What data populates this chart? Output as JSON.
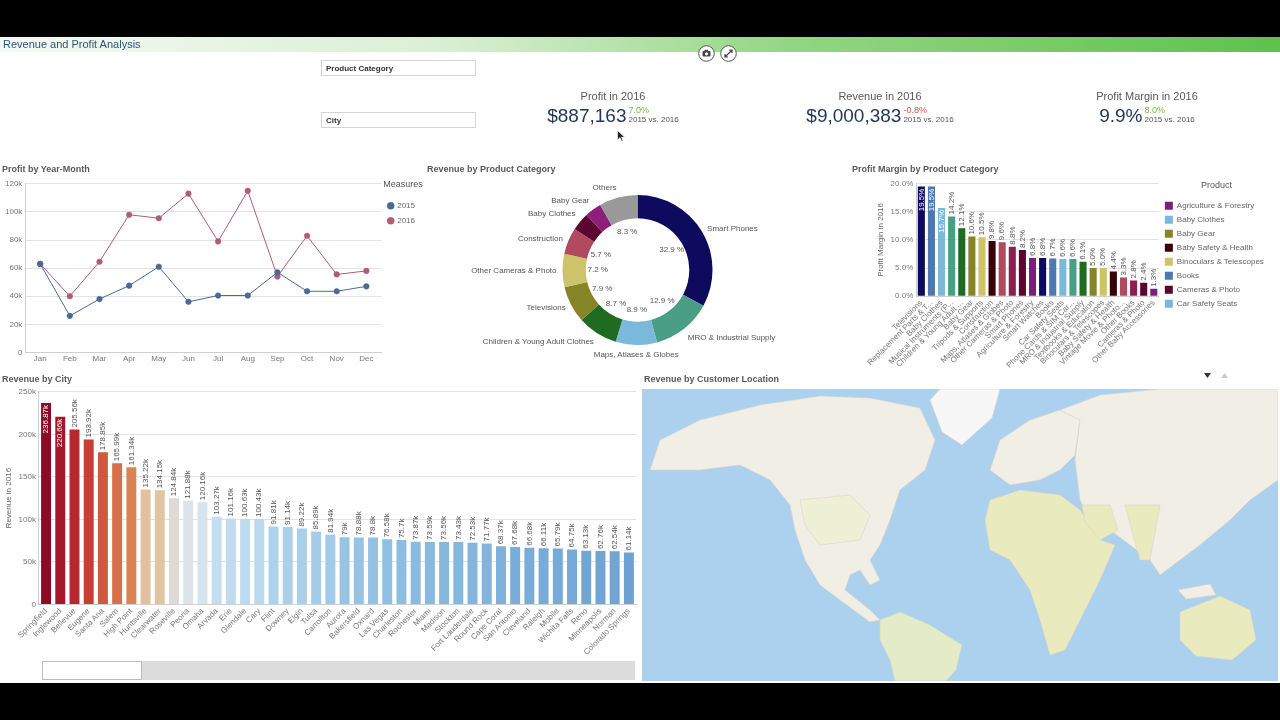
{
  "chart_data": [
    {
      "type": "other",
      "title": "Revenue and Profit Analysis",
      "annotations": [
        "Product Category",
        "City"
      ]
    },
    {
      "type": "other",
      "title": "Profit in 2016",
      "annotations": [
        "$887,163",
        "7.0%",
        "2015 vs. 2016"
      ]
    },
    {
      "type": "other",
      "title": "Revenue in 2016",
      "annotations": [
        "$9,000,383",
        "-0.8%",
        "2015 vs. 2016"
      ]
    },
    {
      "type": "other",
      "title": "Profit Margin in 2016",
      "annotations": [
        "9.9%",
        "8.0%",
        "2015 vs. 2016"
      ]
    },
    {
      "type": "line",
      "title": "Profit by Year-Month",
      "categories": [
        "Jan",
        "Feb",
        "Mar",
        "Apr",
        "May",
        "Jun",
        "Jul",
        "Aug",
        "Sep",
        "Oct",
        "Nov",
        "Dec"
      ],
      "series": [
        {
          "name": "2015",
          "color": "#4a6a94",
          "values": [
            63000,
            26000,
            38000,
            47500,
            61000,
            36000,
            40500,
            40500,
            57000,
            43500,
            43500,
            47000
          ]
        },
        {
          "name": "2016",
          "color": "#b05c75",
          "values": [
            63000,
            40000,
            64500,
            98000,
            95500,
            113000,
            79000,
            115000,
            54000,
            83000,
            55500,
            58000
          ]
        }
      ],
      "ylim": [
        0,
        120000
      ],
      "yticks": [
        0,
        {
          "value": 20000,
          "label": "20k"
        },
        {
          "value": 40000,
          "label": "40k"
        },
        {
          "value": 60000,
          "label": "60k"
        },
        {
          "value": 80000,
          "label": "80k"
        },
        {
          "value": 100000,
          "label": "100k"
        },
        {
          "value": 120000,
          "label": "120k"
        }
      ],
      "grid": "y",
      "legend": "top right",
      "legend_title": "Measures",
      "marker": "circle"
    },
    {
      "type": "donut",
      "title": "Revenue by Product Category",
      "categories": [
        "Smart Phones",
        "MRO & Industrial Supply",
        "Maps, Atlases & Globes",
        "Children & Young Adult Clothes",
        "Televisions",
        "Other Cameras & Photo",
        "Construction",
        "Baby Clothes",
        "Baby Gear",
        "Others"
      ],
      "values": [
        32.9,
        12.9,
        8.9,
        8.7,
        7.9,
        7.2,
        5.7,
        3.9,
        3.6,
        8.3
      ],
      "value_labels": [
        "32.9 %",
        "12.9 %",
        "8.9 %",
        "8.7 %",
        "7.9 %",
        "7.2 %",
        "5.7 %",
        null,
        null,
        "8.3 %"
      ],
      "colors": [
        "#0e0a5e",
        "#4a9e85",
        "#7ab8dc",
        "#1f6b22",
        "#858528",
        "#cec36a",
        "#b04a5e",
        "#5c0530",
        "#8b1f7a",
        "#999999"
      ]
    },
    {
      "type": "bar",
      "title": "Profit Margin by Product Category",
      "ylabel": "Profit Margin in 2016",
      "categories": [
        "Televisions",
        "Replacement Parts & T...",
        "Baby Clothes",
        "Musical Instruments (P...",
        "Children & Young Adult ...",
        "Baby Gear",
        "Tripods & Supports",
        "Construction",
        "Maps, Atlases & Globes",
        "Other Cameras & Photo",
        "Smart Phones",
        "Agriculture & Forestry",
        "Smart Watches",
        "Books",
        "Car Safety Seats",
        "Phone Cards & SIM Car...",
        "MRO & Industrial Supply",
        "Textbooks & Education",
        "Binoculars & Telescopes",
        "Baby Safety & Health",
        "Vintage Movie & Photo...",
        "Other Books",
        "Cameras & Photo",
        "Other Baby Accessories"
      ],
      "series": [
        {
          "name": "Agriculture & Forestry",
          "color": "#7b1f7f",
          "values": [
            null,
            null,
            null,
            null,
            null,
            null,
            null,
            null,
            null,
            null,
            null,
            6.8,
            null,
            null,
            null,
            null,
            null,
            null,
            null,
            null,
            null,
            null,
            null,
            null
          ],
          "value_labels": [
            null,
            null,
            null,
            null,
            null,
            null,
            null,
            null,
            null,
            null,
            null,
            "6.8%",
            null,
            null,
            null,
            null,
            null,
            null,
            null,
            null,
            null,
            null,
            null,
            null
          ]
        },
        {
          "name": "Baby Clothes",
          "color": "#7ab8dc",
          "values": [
            null,
            null,
            15.7,
            null,
            null,
            null,
            null,
            null,
            null,
            null,
            null,
            null,
            null,
            null,
            null,
            null,
            null,
            null,
            null,
            null,
            null,
            null,
            null,
            null
          ],
          "value_labels": [
            null,
            null,
            "15.7%",
            null,
            null,
            null,
            null,
            null,
            null,
            null,
            null,
            null,
            null,
            null,
            null,
            null,
            null,
            null,
            null,
            null,
            null,
            null,
            null,
            null
          ]
        },
        {
          "name": "Baby Gear",
          "color": "#858528",
          "values": [
            null,
            null,
            null,
            null,
            null,
            10.6,
            null,
            null,
            null,
            null,
            null,
            null,
            null,
            null,
            null,
            null,
            null,
            null,
            null,
            null,
            null,
            null,
            null,
            null
          ],
          "value_labels": [
            null,
            null,
            null,
            null,
            null,
            "10.6%",
            null,
            null,
            null,
            null,
            null,
            null,
            null,
            null,
            null,
            null,
            null,
            null,
            null,
            null,
            null,
            null,
            null,
            null
          ]
        },
        {
          "name": "Baby Safety & Health",
          "color": "#3a0008",
          "values": [
            null,
            null,
            null,
            null,
            null,
            null,
            null,
            null,
            null,
            null,
            null,
            null,
            null,
            null,
            null,
            null,
            null,
            null,
            null,
            4.4,
            null,
            null,
            null,
            null
          ],
          "value_labels": [
            null,
            null,
            null,
            null,
            null,
            null,
            null,
            null,
            null,
            null,
            null,
            null,
            null,
            null,
            null,
            null,
            null,
            null,
            null,
            "4.4%",
            null,
            null,
            null,
            null
          ]
        },
        {
          "name": "Binoculars & Telescopes",
          "color": "#cec36a",
          "values": [
            null,
            null,
            null,
            null,
            null,
            null,
            null,
            null,
            null,
            null,
            null,
            null,
            null,
            null,
            null,
            null,
            null,
            null,
            5.0,
            null,
            null,
            null,
            null,
            null
          ],
          "value_labels": [
            null,
            null,
            null,
            null,
            null,
            null,
            null,
            null,
            null,
            null,
            null,
            null,
            null,
            null,
            null,
            null,
            null,
            null,
            "5.0%",
            null,
            null,
            null,
            null,
            null
          ]
        },
        {
          "name": "Books",
          "color": "#4e79b0",
          "values": [
            null,
            null,
            null,
            null,
            null,
            null,
            null,
            null,
            null,
            null,
            null,
            null,
            null,
            6.7,
            null,
            null,
            null,
            null,
            null,
            null,
            null,
            null,
            null,
            null
          ],
          "value_labels": [
            null,
            null,
            null,
            null,
            null,
            null,
            null,
            null,
            null,
            null,
            null,
            null,
            null,
            "6.7%",
            null,
            null,
            null,
            null,
            null,
            null,
            null,
            null,
            null,
            null
          ]
        },
        {
          "name": "Cameras & Photo",
          "color": "#5c0530",
          "values": [
            null,
            null,
            null,
            null,
            null,
            null,
            null,
            null,
            null,
            null,
            null,
            null,
            null,
            null,
            null,
            null,
            null,
            null,
            null,
            null,
            null,
            null,
            2.4,
            null
          ],
          "value_labels": [
            null,
            null,
            null,
            null,
            null,
            null,
            null,
            null,
            null,
            null,
            null,
            null,
            null,
            null,
            null,
            null,
            null,
            null,
            null,
            null,
            null,
            null,
            "2.4%",
            null
          ]
        },
        {
          "name": "Car Safety Seats",
          "color": "#7ab8dc",
          "values": [
            null,
            null,
            null,
            null,
            null,
            null,
            null,
            null,
            null,
            null,
            null,
            null,
            null,
            null,
            6.6,
            null,
            null,
            null,
            null,
            null,
            null,
            null,
            null,
            null
          ],
          "value_labels": [
            null,
            null,
            null,
            null,
            null,
            null,
            null,
            null,
            null,
            null,
            null,
            null,
            null,
            null,
            "6.6%",
            null,
            null,
            null,
            null,
            null,
            null,
            null,
            null,
            null
          ]
        },
        {
          "color": "#1f6b22",
          "values": [
            null,
            null,
            null,
            null,
            12.1,
            null,
            null,
            null,
            null,
            null,
            null,
            null,
            null,
            null,
            null,
            null,
            null,
            null,
            null,
            null,
            null,
            null,
            null,
            null
          ],
          "value_labels": [
            null,
            null,
            null,
            null,
            "12.1%",
            null,
            null,
            null,
            null,
            null,
            null,
            null,
            null,
            null,
            null,
            null,
            null,
            null,
            null,
            null,
            null,
            null,
            null,
            null
          ]
        },
        {
          "color": "#3a0008",
          "values": [
            null,
            null,
            null,
            null,
            null,
            null,
            null,
            9.8,
            null,
            null,
            null,
            null,
            null,
            null,
            null,
            null,
            null,
            null,
            null,
            null,
            null,
            null,
            null,
            null
          ],
          "value_labels": [
            null,
            null,
            null,
            null,
            null,
            null,
            null,
            "9.8%",
            null,
            null,
            null,
            null,
            null,
            null,
            null,
            null,
            null,
            null,
            null,
            null,
            null,
            null,
            null,
            null
          ]
        },
        {
          "color": "#b04a5e",
          "values": [
            null,
            null,
            null,
            null,
            null,
            null,
            null,
            null,
            9.6,
            null,
            null,
            null,
            null,
            null,
            null,
            null,
            null,
            null,
            null,
            null,
            null,
            null,
            null,
            null
          ],
          "value_labels": [
            null,
            null,
            null,
            null,
            null,
            null,
            null,
            null,
            "9.6%",
            null,
            null,
            null,
            null,
            null,
            null,
            null,
            null,
            null,
            null,
            null,
            null,
            null,
            null,
            null
          ]
        },
        {
          "color": "#1f6b22",
          "values": [
            null,
            null,
            null,
            null,
            null,
            null,
            null,
            null,
            null,
            null,
            null,
            null,
            null,
            null,
            null,
            null,
            6.1,
            null,
            null,
            null,
            null,
            null,
            null,
            null
          ],
          "value_labels": [
            null,
            null,
            null,
            null,
            null,
            null,
            null,
            null,
            null,
            null,
            null,
            null,
            null,
            null,
            null,
            null,
            "6.1%",
            null,
            null,
            null,
            null,
            null,
            null,
            null
          ]
        },
        {
          "color": "#4a9e85",
          "values": [
            null,
            null,
            null,
            14.2,
            null,
            null,
            null,
            null,
            null,
            null,
            null,
            null,
            null,
            null,
            null,
            null,
            null,
            null,
            null,
            null,
            null,
            null,
            null,
            null
          ],
          "value_labels": [
            null,
            null,
            null,
            "14.2%",
            null,
            null,
            null,
            null,
            null,
            null,
            null,
            null,
            null,
            null,
            null,
            null,
            null,
            null,
            null,
            null,
            null,
            null,
            null,
            null
          ]
        },
        {
          "color": "#7b1f7f",
          "values": [
            null,
            null,
            null,
            null,
            null,
            null,
            null,
            null,
            null,
            null,
            null,
            null,
            null,
            null,
            null,
            null,
            null,
            null,
            null,
            null,
            null,
            null,
            null,
            1.3
          ],
          "value_labels": [
            null,
            null,
            null,
            null,
            null,
            null,
            null,
            null,
            null,
            null,
            null,
            null,
            null,
            null,
            null,
            null,
            null,
            null,
            null,
            null,
            null,
            null,
            null,
            "1.3%"
          ]
        },
        {
          "color": "#8b2050",
          "values": [
            null,
            null,
            null,
            null,
            null,
            null,
            null,
            null,
            null,
            null,
            null,
            null,
            null,
            null,
            null,
            null,
            null,
            null,
            null,
            null,
            null,
            2.8,
            null,
            null
          ],
          "value_labels": [
            null,
            null,
            null,
            null,
            null,
            null,
            null,
            null,
            null,
            null,
            null,
            null,
            null,
            null,
            null,
            null,
            null,
            null,
            null,
            null,
            null,
            "2.8%",
            null,
            null
          ]
        },
        {
          "color": "#8b2050",
          "values": [
            null,
            null,
            null,
            null,
            null,
            null,
            null,
            null,
            null,
            8.8,
            null,
            null,
            null,
            null,
            null,
            null,
            null,
            null,
            null,
            null,
            null,
            null,
            null,
            null
          ],
          "value_labels": [
            null,
            null,
            null,
            null,
            null,
            null,
            null,
            null,
            null,
            "8.8%",
            null,
            null,
            null,
            null,
            null,
            null,
            null,
            null,
            null,
            null,
            null,
            null,
            null,
            null
          ]
        },
        {
          "color": "#4a9e85",
          "values": [
            null,
            null,
            null,
            null,
            null,
            null,
            null,
            null,
            null,
            null,
            null,
            null,
            null,
            null,
            null,
            6.6,
            null,
            null,
            null,
            null,
            null,
            null,
            null,
            null
          ],
          "value_labels": [
            null,
            null,
            null,
            null,
            null,
            null,
            null,
            null,
            null,
            null,
            null,
            null,
            null,
            null,
            null,
            "6.6%",
            null,
            null,
            null,
            null,
            null,
            null,
            null,
            null
          ]
        },
        {
          "color": "#4e79b0",
          "values": [
            null,
            19.5,
            null,
            null,
            null,
            null,
            null,
            null,
            null,
            null,
            null,
            null,
            null,
            null,
            null,
            null,
            null,
            null,
            null,
            null,
            null,
            null,
            null,
            null
          ],
          "value_labels": [
            null,
            "19.5%",
            null,
            null,
            null,
            null,
            null,
            null,
            null,
            null,
            null,
            null,
            null,
            null,
            null,
            null,
            null,
            null,
            null,
            null,
            null,
            null,
            null,
            null
          ]
        },
        {
          "color": "#5c0530",
          "values": [
            null,
            null,
            null,
            null,
            null,
            null,
            null,
            null,
            null,
            null,
            8.2,
            null,
            null,
            null,
            null,
            null,
            null,
            null,
            null,
            null,
            null,
            null,
            null,
            null
          ],
          "value_labels": [
            null,
            null,
            null,
            null,
            null,
            null,
            null,
            null,
            null,
            null,
            "8.2%",
            null,
            null,
            null,
            null,
            null,
            null,
            null,
            null,
            null,
            null,
            null,
            null,
            null
          ]
        },
        {
          "color": "#0e0a5e",
          "values": [
            null,
            null,
            null,
            null,
            null,
            null,
            null,
            null,
            null,
            null,
            null,
            null,
            6.8,
            null,
            null,
            null,
            null,
            null,
            null,
            null,
            null,
            null,
            null,
            null
          ],
          "value_labels": [
            null,
            null,
            null,
            null,
            null,
            null,
            null,
            null,
            null,
            null,
            null,
            null,
            "6.8%",
            null,
            null,
            null,
            null,
            null,
            null,
            null,
            null,
            null,
            null,
            null
          ]
        },
        {
          "color": "#0e0a5e",
          "values": [
            19.5,
            null,
            null,
            null,
            null,
            null,
            null,
            null,
            null,
            null,
            null,
            null,
            null,
            null,
            null,
            null,
            null,
            null,
            null,
            null,
            null,
            null,
            null,
            null
          ],
          "value_labels": [
            "19.5%",
            null,
            null,
            null,
            null,
            null,
            null,
            null,
            null,
            null,
            null,
            null,
            null,
            null,
            null,
            null,
            null,
            null,
            null,
            null,
            null,
            null,
            null,
            null
          ]
        },
        {
          "color": "#858528",
          "values": [
            null,
            null,
            null,
            null,
            null,
            null,
            null,
            null,
            null,
            null,
            null,
            null,
            null,
            null,
            null,
            null,
            null,
            5.0,
            null,
            null,
            null,
            null,
            null,
            null
          ],
          "value_labels": [
            null,
            null,
            null,
            null,
            null,
            null,
            null,
            null,
            null,
            null,
            null,
            null,
            null,
            null,
            null,
            null,
            null,
            "5.0%",
            null,
            null,
            null,
            null,
            null,
            null
          ]
        },
        {
          "color": "#cec36a",
          "values": [
            null,
            null,
            null,
            null,
            null,
            null,
            10.5,
            null,
            null,
            null,
            null,
            null,
            null,
            null,
            null,
            null,
            null,
            null,
            null,
            null,
            null,
            null,
            null,
            null
          ],
          "value_labels": [
            null,
            null,
            null,
            null,
            null,
            null,
            "10.5%",
            null,
            null,
            null,
            null,
            null,
            null,
            null,
            null,
            null,
            null,
            null,
            null,
            null,
            null,
            null,
            null,
            null
          ]
        },
        {
          "color": "#b04a5e",
          "values": [
            null,
            null,
            null,
            null,
            null,
            null,
            null,
            null,
            null,
            null,
            null,
            null,
            null,
            null,
            null,
            null,
            null,
            null,
            null,
            null,
            3.3,
            null,
            null,
            null
          ],
          "value_labels": [
            null,
            null,
            null,
            null,
            null,
            null,
            null,
            null,
            null,
            null,
            null,
            null,
            null,
            null,
            null,
            null,
            null,
            null,
            null,
            null,
            "3.3%",
            null,
            null,
            null
          ]
        }
      ],
      "ylim": [
        0,
        20
      ],
      "yticks": [
        {
          "value": 0,
          "label": "0.0%"
        },
        {
          "value": 5,
          "label": "5.0%"
        },
        {
          "value": 10,
          "label": "10.0%"
        },
        {
          "value": 15,
          "label": "15.0%"
        },
        {
          "value": 20,
          "label": "20.0%"
        }
      ],
      "grid": "y",
      "legend": "right",
      "legend_title": "Product"
    },
    {
      "type": "bar",
      "title": "Revenue by City",
      "ylabel": "Revenue in 2016",
      "categories": [
        "Springfield",
        "Inglewood",
        "Bellevue",
        "Eugene",
        "Santa Ana",
        "Salem",
        "High Point",
        "Huntsville",
        "Clearwater",
        "Roseville",
        "Peoria",
        "Omaha",
        "Arvada",
        "Erie",
        "Glendale",
        "Cary",
        "Flint",
        "Downey",
        "Elgin",
        "Tulsa",
        "Carrollton",
        "Aurora",
        "Bakersfield",
        "Oxnard",
        "Las Vegas",
        "Charleston",
        "Rochester",
        "Miami",
        "Madison",
        "Stockton",
        "Fort Lauderdale",
        "Round Rock",
        "Cape Coral",
        "San Antonio",
        "Cleveland",
        "Raleigh",
        "Mobile",
        "Wichita Falls",
        "Reno",
        "Minneapolis",
        "Norman",
        "Colorado Springs"
      ],
      "values": [
        236870,
        220660,
        205560,
        193920,
        178850,
        165990,
        161340,
        135220,
        134150,
        124840,
        121880,
        120160,
        103270,
        101160,
        100630,
        100430,
        91810,
        91140,
        89220,
        85890,
        81940,
        79000,
        78880,
        78800,
        76580,
        75700,
        73870,
        73590,
        73560,
        73430,
        72530,
        71770,
        68370,
        67680,
        66680,
        66110,
        65790,
        64750,
        63130,
        62760,
        62540,
        61140
      ],
      "value_labels": [
        "236.87k",
        "220.66k",
        "205.56k",
        "193.92k",
        "178.85k",
        "165.99k",
        "161.34k",
        "135.22k",
        "134.15k",
        "124.84k",
        "121.88k",
        "120.16k",
        "103.27k",
        "101.16k",
        "100.63k",
        "100.43k",
        "91.81k",
        "91.14k",
        "89.22k",
        "85.89k",
        "81.94k",
        "79k",
        "78.88k",
        "78.8k",
        "76.58k",
        "75.7k",
        "73.87k",
        "73.59k",
        "73.56k",
        "73.43k",
        "72.53k",
        "71.77k",
        "68.37k",
        "67.68k",
        "66.68k",
        "66.11k",
        "65.79k",
        "64.75k",
        "63.13k",
        "62.76k",
        "62.54k",
        "61.14k"
      ],
      "colors": [
        "#8a0c26",
        "#a3192b",
        "#b42a2e",
        "#c24134",
        "#cd5a3f",
        "#d6704a",
        "#da8456",
        "#e2c09e",
        "#e1c5a3",
        "#dedad6",
        "#dce4ea",
        "#d6e4ef",
        "#c4def1",
        "#c0dbf0",
        "#bddaef",
        "#bbd9ee",
        "#aed2ec",
        "#abd0eb",
        "#a9cfea",
        "#a5cde9",
        "#a0cae7",
        "#98c4e4",
        "#96c3e3",
        "#95c2e3",
        "#90bfe1",
        "#8dbde0",
        "#89badf",
        "#88b9de",
        "#87b8de",
        "#86b7dd",
        "#84b6dd",
        "#82b4dc",
        "#7db0da",
        "#7aaed9",
        "#79add8",
        "#78acd8",
        "#77abd7",
        "#75a9d6",
        "#72a7d5",
        "#71a6d4",
        "#70a5d4",
        "#6da2d2"
      ],
      "ylim": [
        0,
        250000
      ],
      "yticks": [
        0,
        {
          "value": 50000,
          "label": "50k"
        },
        {
          "value": 100000,
          "label": "100k"
        },
        {
          "value": 150000,
          "label": "150k"
        },
        {
          "value": 200000,
          "label": "200k"
        },
        {
          "value": 250000,
          "label": "250k"
        }
      ],
      "grid": "y"
    },
    {
      "type": "other",
      "title": "Revenue by Customer Location"
    }
  ]
}
